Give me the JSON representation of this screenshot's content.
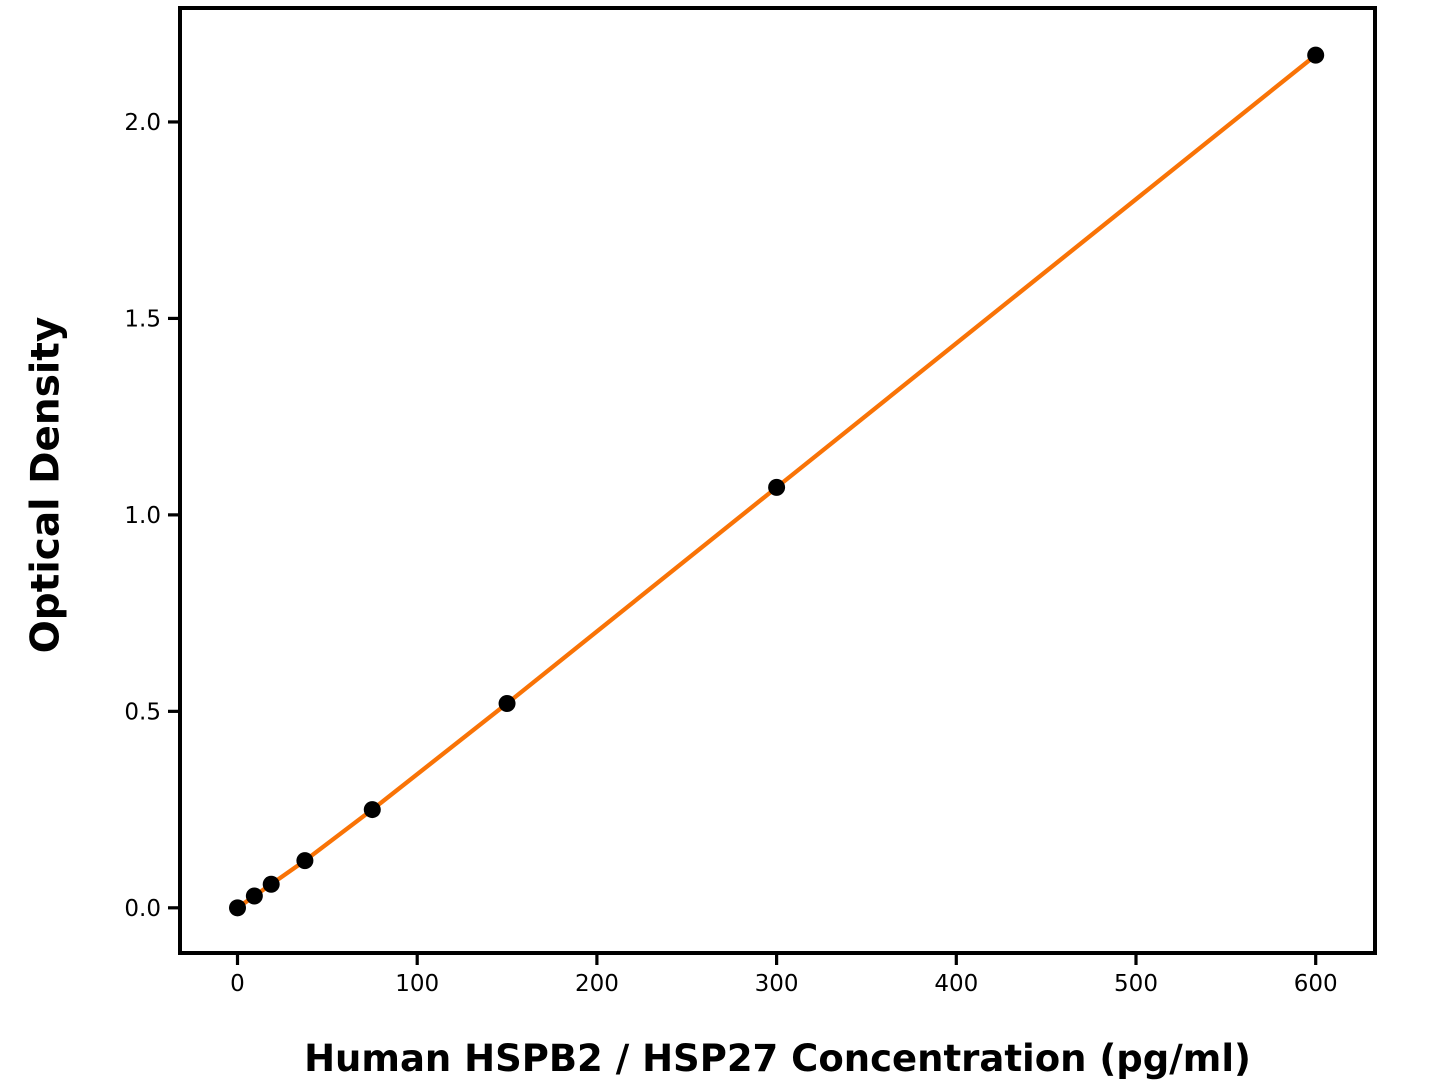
{
  "chart_data": {
    "type": "scatter",
    "title": "",
    "xlabel": "Human HSPB2 / HSP27 Concentration (pg/ml)",
    "ylabel": "Optical Density",
    "x": [
      0,
      9.375,
      18.75,
      37.5,
      75,
      150,
      300,
      600
    ],
    "y": [
      0.0,
      0.03,
      0.06,
      0.12,
      0.25,
      0.52,
      1.07,
      2.17
    ],
    "line_through_points": true,
    "xlim": [
      -32,
      633
    ],
    "ylim": [
      -0.115,
      2.29
    ],
    "xticks": [
      0,
      100,
      200,
      300,
      400,
      500,
      600
    ],
    "xtick_labels": [
      "0",
      "100",
      "200",
      "300",
      "400",
      "500",
      "600"
    ],
    "yticks": [
      0.0,
      0.5,
      1.0,
      1.5,
      2.0
    ],
    "ytick_labels": [
      "0.0",
      "0.5",
      "1.0",
      "1.5",
      "2.0"
    ],
    "grid": false,
    "legend": "none",
    "colors": {
      "line": "#f97306",
      "marker": "#000000",
      "axis": "#000000",
      "tick_label": "#000000",
      "background": "#ffffff"
    }
  }
}
